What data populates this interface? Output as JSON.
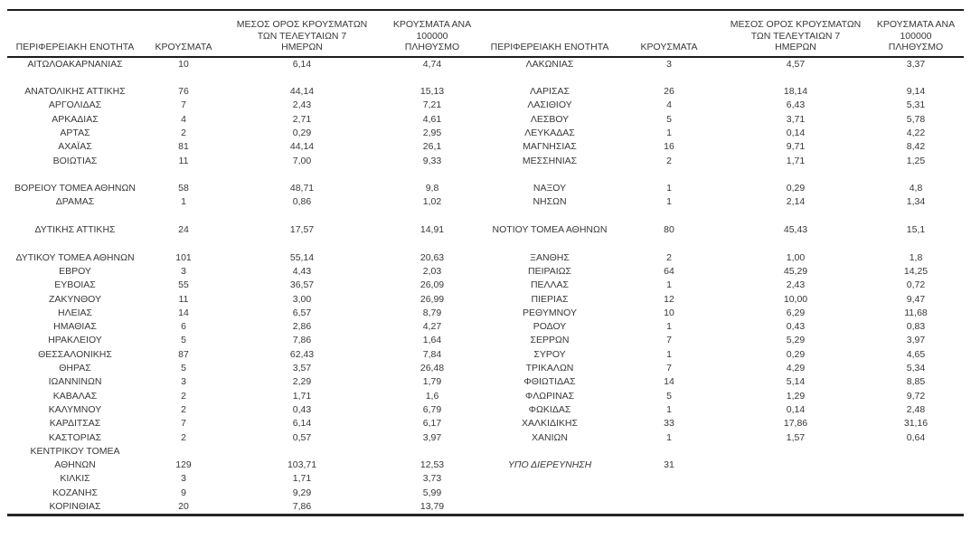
{
  "page": {
    "background": "#ffffff",
    "text_color": "#383838",
    "rule_color": "#1c1c1c"
  },
  "table": {
    "headers": {
      "left": {
        "region": "ΠΕΡΙΦΕΡΕΙΑΚΗ ΕΝΟΤΗΤΑ",
        "cases": "ΚΡΟΥΣΜΑΤΑ",
        "avg7": "ΜΕΣΟΣ ΟΡΟΣ ΚΡΟΥΣΜΑΤΩΝ\nΤΩΝ ΤΕΛΕΥΤΑΙΩΝ 7\nΗΜΕΡΩΝ",
        "per100k": "ΚΡΟΥΣΜΑΤΑ ΑΝΑ 100000\nΠΛΗΘΥΣΜΟ"
      },
      "right": {
        "region": "ΠΕΡΙΦΕΡΕΙΑΚΗ ΕΝΟΤΗΤΑ",
        "cases": "ΚΡΟΥΣΜΑΤΑ",
        "avg7": "ΜΕΣΟΣ ΟΡΟΣ ΚΡΟΥΣΜΑΤΩΝ\nΤΩΝ ΤΕΛΕΥΤΑΙΩΝ 7\nΗΜΕΡΩΝ",
        "per100k": "ΚΡΟΥΣΜΑΤΑ ΑΝΑ 100000\nΠΛΗΘΥΣΜΟ"
      }
    },
    "rows": [
      [
        "ΑΙΤΩΛΟΑΚΑΡΝΑΝΙΑΣ",
        "10",
        "6,14",
        "4,74",
        "ΛΑΚΩΝΙΑΣ",
        "3",
        "4,57",
        "3,37"
      ],
      [
        "",
        "",
        "",
        "",
        "",
        "",
        "",
        ""
      ],
      [
        "ΑΝΑΤΟΛΙΚΗΣ ΑΤΤΙΚΗΣ",
        "76",
        "44,14",
        "15,13",
        "ΛΑΡΙΣΑΣ",
        "26",
        "18,14",
        "9,14"
      ],
      [
        "ΑΡΓΟΛΙΔΑΣ",
        "7",
        "2,43",
        "7,21",
        "ΛΑΣΙΘΙΟΥ",
        "4",
        "6,43",
        "5,31"
      ],
      [
        "ΑΡΚΑΔΙΑΣ",
        "4",
        "2,71",
        "4,61",
        "ΛΕΣΒΟΥ",
        "5",
        "3,71",
        "5,78"
      ],
      [
        "ΑΡΤΑΣ",
        "2",
        "0,29",
        "2,95",
        "ΛΕΥΚΑΔΑΣ",
        "1",
        "0,14",
        "4,22"
      ],
      [
        "ΑΧΑΪΑΣ",
        "81",
        "44,14",
        "26,1",
        "ΜΑΓΝΗΣΙΑΣ",
        "16",
        "9,71",
        "8,42"
      ],
      [
        "ΒΟΙΩΤΙΑΣ",
        "11",
        "7,00",
        "9,33",
        "ΜΕΣΣΗΝΙΑΣ",
        "2",
        "1,71",
        "1,25"
      ],
      [
        "",
        "",
        "",
        "",
        "",
        "",
        "",
        ""
      ],
      [
        "ΒΟΡΕΙΟΥ ΤΟΜΕΑ ΑΘΗΝΩΝ",
        "58",
        "48,71",
        "9,8",
        "ΝΑΞΟΥ",
        "1",
        "0,29",
        "4,8"
      ],
      [
        "ΔΡΑΜΑΣ",
        "1",
        "0,86",
        "1,02",
        "ΝΗΣΩΝ",
        "1",
        "2,14",
        "1,34"
      ],
      [
        "",
        "",
        "",
        "",
        "",
        "",
        "",
        ""
      ],
      [
        "ΔΥΤΙΚΗΣ ΑΤΤΙΚΗΣ",
        "24",
        "17,57",
        "14,91",
        "ΝΟΤΙΟΥ ΤΟΜΕΑ ΑΘΗΝΩΝ",
        "80",
        "45,43",
        "15,1"
      ],
      [
        "",
        "",
        "",
        "",
        "",
        "",
        "",
        ""
      ],
      [
        "ΔΥΤΙΚΟΥ ΤΟΜΕΑ ΑΘΗΝΩΝ",
        "101",
        "55,14",
        "20,63",
        "ΞΑΝΘΗΣ",
        "2",
        "1,00",
        "1,8"
      ],
      [
        "ΕΒΡΟΥ",
        "3",
        "4,43",
        "2,03",
        "ΠΕΙΡΑΙΩΣ",
        "64",
        "45,29",
        "14,25"
      ],
      [
        "ΕΥΒΟΙΑΣ",
        "55",
        "36,57",
        "26,09",
        "ΠΕΛΛΑΣ",
        "1",
        "2,43",
        "0,72"
      ],
      [
        "ΖΑΚΥΝΘΟΥ",
        "11",
        "3,00",
        "26,99",
        "ΠΙΕΡΙΑΣ",
        "12",
        "10,00",
        "9,47"
      ],
      [
        "ΗΛΕΙΑΣ",
        "14",
        "6,57",
        "8,79",
        "ΡΕΘΥΜΝΟΥ",
        "10",
        "6,29",
        "11,68"
      ],
      [
        "ΗΜΑΘΙΑΣ",
        "6",
        "2,86",
        "4,27",
        "ΡΟΔΟΥ",
        "1",
        "0,43",
        "0,83"
      ],
      [
        "ΗΡΑΚΛΕΙΟΥ",
        "5",
        "7,86",
        "1,64",
        "ΣΕΡΡΩΝ",
        "7",
        "5,29",
        "3,97"
      ],
      [
        "ΘΕΣΣΑΛΟΝΙΚΗΣ",
        "87",
        "62,43",
        "7,84",
        "ΣΥΡΟΥ",
        "1",
        "0,29",
        "4,65"
      ],
      [
        "ΘΗΡΑΣ",
        "5",
        "3,57",
        "26,48",
        "ΤΡΙΚΑΛΩΝ",
        "7",
        "4,29",
        "5,34"
      ],
      [
        "ΙΩΑΝΝΙΝΩΝ",
        "3",
        "2,29",
        "1,79",
        "ΦΘΙΩΤΙΔΑΣ",
        "14",
        "5,14",
        "8,85"
      ],
      [
        "ΚΑΒΑΛΑΣ",
        "2",
        "1,71",
        "1,6",
        "ΦΛΩΡΙΝΑΣ",
        "5",
        "1,29",
        "9,72"
      ],
      [
        "ΚΑΛΥΜΝΟΥ",
        "2",
        "0,43",
        "6,79",
        "ΦΩΚΙΔΑΣ",
        "1",
        "0,14",
        "2,48"
      ],
      [
        "ΚΑΡΔΙΤΣΑΣ",
        "7",
        "6,14",
        "6,17",
        "ΧΑΛΚΙΔΙΚΗΣ",
        "33",
        "17,86",
        "31,16"
      ],
      [
        "ΚΑΣΤΟΡΙΑΣ",
        "2",
        "0,57",
        "3,97",
        "ΧΑΝΙΩΝ",
        "1",
        "1,57",
        "0,64"
      ],
      [
        "ΚΕΝΤΡΙΚΟΥ ΤΟΜΕΑ",
        "",
        "",
        "",
        "",
        "",
        "",
        ""
      ],
      [
        "ΑΘΗΝΩΝ",
        "129",
        "103,71",
        "12,53",
        {
          "t": "ΥΠΟ ΔΙΕΡΕΥΝΗΣΗ",
          "i": true
        },
        "31",
        "",
        ""
      ],
      [
        "ΚΙΛΚΙΣ",
        "3",
        "1,71",
        "3,73",
        "",
        "",
        "",
        ""
      ],
      [
        "ΚΟΖΑΝΗΣ",
        "9",
        "9,29",
        "5,99",
        "",
        "",
        "",
        ""
      ],
      [
        "ΚΟΡΙΝΘΙΑΣ",
        "20",
        "7,86",
        "13,79",
        "",
        "",
        "",
        ""
      ]
    ]
  }
}
